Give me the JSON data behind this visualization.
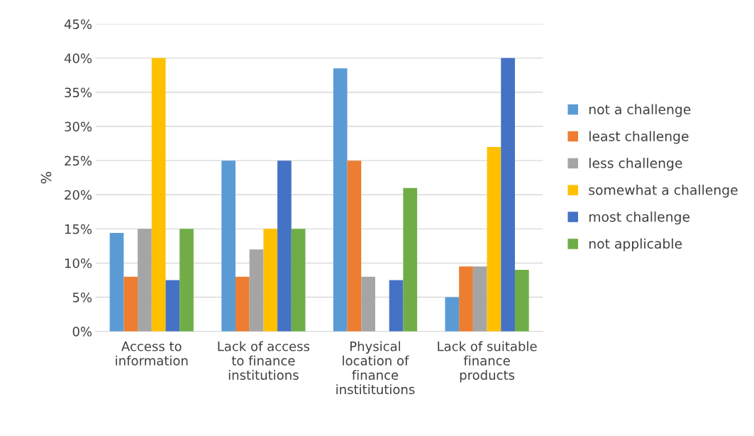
{
  "chart_data": {
    "type": "bar",
    "ylabel": "%",
    "categories": [
      "Access to\ninformation",
      "Lack of access\nto finance\ninstitutions",
      "Physical\nlocation of\nfinance\ninstititutions",
      "Lack of suitable\nfinance\nproducts"
    ],
    "series": [
      {
        "name": "not a challenge",
        "color": "#5b9bd5",
        "values": [
          14.4,
          25,
          38.5,
          5
        ]
      },
      {
        "name": "least challenge",
        "color": "#ed7d31",
        "values": [
          8,
          8,
          25,
          9.5
        ]
      },
      {
        "name": "less challenge",
        "color": "#a5a5a5",
        "values": [
          15,
          12,
          8,
          9.5
        ]
      },
      {
        "name": "somewhat a challenge",
        "color": "#ffc000",
        "values": [
          40,
          15,
          null,
          27
        ]
      },
      {
        "name": "most challenge",
        "color": "#4472c4",
        "values": [
          7.5,
          25,
          7.5,
          40
        ]
      },
      {
        "name": "not applicable",
        "color": "#70ad47",
        "values": [
          15,
          15,
          21,
          9
        ]
      }
    ],
    "ylim": [
      0,
      45
    ],
    "yticks": [
      {
        "value": 0,
        "label": "0%"
      },
      {
        "value": 5,
        "label": "5%"
      },
      {
        "value": 10,
        "label": "10%"
      },
      {
        "value": 15,
        "label": "15%"
      },
      {
        "value": 20,
        "label": "20%"
      },
      {
        "value": 25,
        "label": "25%"
      },
      {
        "value": 30,
        "label": "30%"
      },
      {
        "value": 35,
        "label": "35%"
      },
      {
        "value": 40,
        "label": "40%"
      },
      {
        "value": 45,
        "label": "45%"
      }
    ],
    "grid": "y",
    "legend": "right"
  }
}
